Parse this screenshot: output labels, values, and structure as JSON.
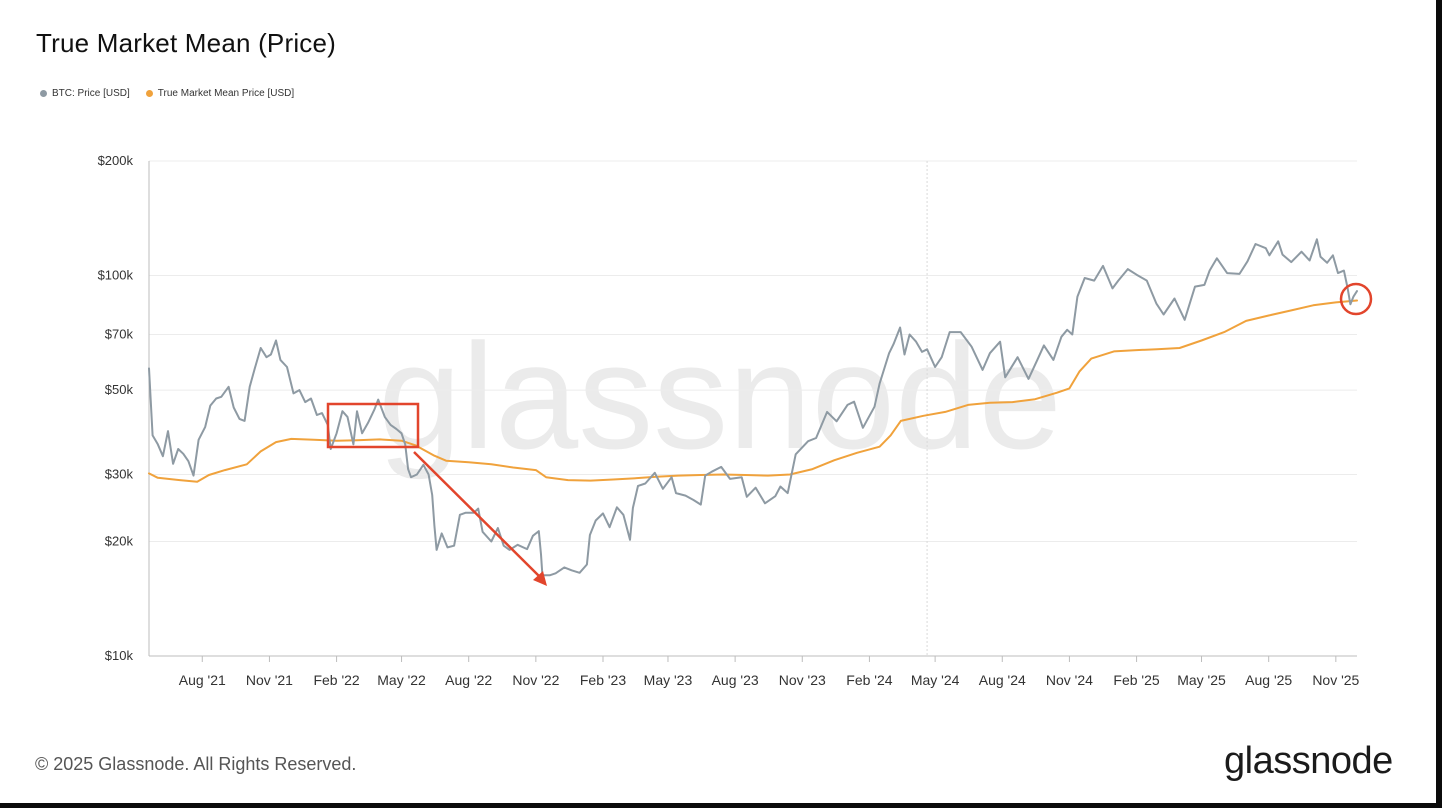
{
  "title": "True Market Mean (Price)",
  "legend": [
    {
      "label": "BTC: Price [USD]",
      "color": "#8e9aa3"
    },
    {
      "label": "True Market Mean Price [USD]",
      "color": "#f0a23c"
    }
  ],
  "watermark": "glassnode",
  "footer": "© 2025 Glassnode. All Rights Reserved.",
  "logo": "glassnode",
  "chart_data": {
    "type": "line",
    "y_scale": "log",
    "ylim": [
      10000,
      200000
    ],
    "xlim": [
      "2021-05-20",
      "2025-11-30"
    ],
    "y_ticks": [
      {
        "value": 10000,
        "label": "$10k"
      },
      {
        "value": 20000,
        "label": "$20k"
      },
      {
        "value": 30000,
        "label": "$30k"
      },
      {
        "value": 50000,
        "label": "$50k"
      },
      {
        "value": 70000,
        "label": "$70k"
      },
      {
        "value": 100000,
        "label": "$100k"
      },
      {
        "value": 200000,
        "label": "$200k"
      }
    ],
    "x_ticks": [
      {
        "date": "2021-08-01",
        "label": "Aug '21"
      },
      {
        "date": "2021-11-01",
        "label": "Nov '21"
      },
      {
        "date": "2022-02-01",
        "label": "Feb '22"
      },
      {
        "date": "2022-05-01",
        "label": "May '22"
      },
      {
        "date": "2022-08-01",
        "label": "Aug '22"
      },
      {
        "date": "2022-11-01",
        "label": "Nov '22"
      },
      {
        "date": "2023-02-01",
        "label": "Feb '23"
      },
      {
        "date": "2023-05-01",
        "label": "May '23"
      },
      {
        "date": "2023-08-01",
        "label": "Aug '23"
      },
      {
        "date": "2023-11-01",
        "label": "Nov '23"
      },
      {
        "date": "2024-02-01",
        "label": "Feb '24"
      },
      {
        "date": "2024-05-01",
        "label": "May '24"
      },
      {
        "date": "2024-08-01",
        "label": "Aug '24"
      },
      {
        "date": "2024-11-01",
        "label": "Nov '24"
      },
      {
        "date": "2025-02-01",
        "label": "Feb '25"
      },
      {
        "date": "2025-05-01",
        "label": "May '25"
      },
      {
        "date": "2025-08-01",
        "label": "Aug '25"
      },
      {
        "date": "2025-11-01",
        "label": "Nov '25"
      }
    ],
    "vertical_marker": "2024-04-20",
    "series": [
      {
        "name": "BTC: Price [USD]",
        "color": "#8e9aa3",
        "points": [
          [
            "2021-05-20",
            57000
          ],
          [
            "2021-05-25",
            38000
          ],
          [
            "2021-06-01",
            36000
          ],
          [
            "2021-06-08",
            33500
          ],
          [
            "2021-06-15",
            39000
          ],
          [
            "2021-06-22",
            32000
          ],
          [
            "2021-06-29",
            35000
          ],
          [
            "2021-07-06",
            34000
          ],
          [
            "2021-07-13",
            32500
          ],
          [
            "2021-07-20",
            29800
          ],
          [
            "2021-07-27",
            37000
          ],
          [
            "2021-08-05",
            40000
          ],
          [
            "2021-08-12",
            45500
          ],
          [
            "2021-08-20",
            47500
          ],
          [
            "2021-08-27",
            48000
          ],
          [
            "2021-09-06",
            51000
          ],
          [
            "2021-09-13",
            45000
          ],
          [
            "2021-09-21",
            42000
          ],
          [
            "2021-09-28",
            41500
          ],
          [
            "2021-10-05",
            51000
          ],
          [
            "2021-10-12",
            57000
          ],
          [
            "2021-10-20",
            64500
          ],
          [
            "2021-10-28",
            61000
          ],
          [
            "2021-11-03",
            62000
          ],
          [
            "2021-11-10",
            67500
          ],
          [
            "2021-11-16",
            60000
          ],
          [
            "2021-11-25",
            57500
          ],
          [
            "2021-12-04",
            49000
          ],
          [
            "2021-12-12",
            50000
          ],
          [
            "2021-12-20",
            46500
          ],
          [
            "2021-12-28",
            47500
          ],
          [
            "2022-01-05",
            43000
          ],
          [
            "2022-01-12",
            43500
          ],
          [
            "2022-01-20",
            40500
          ],
          [
            "2022-01-24",
            35000
          ],
          [
            "2022-02-01",
            38500
          ],
          [
            "2022-02-09",
            44000
          ],
          [
            "2022-02-16",
            42500
          ],
          [
            "2022-02-24",
            36000
          ],
          [
            "2022-03-01",
            44000
          ],
          [
            "2022-03-08",
            38500
          ],
          [
            "2022-03-16",
            41000
          ],
          [
            "2022-03-25",
            44500
          ],
          [
            "2022-03-30",
            47200
          ],
          [
            "2022-04-08",
            42500
          ],
          [
            "2022-04-16",
            40500
          ],
          [
            "2022-04-24",
            39500
          ],
          [
            "2022-05-01",
            38500
          ],
          [
            "2022-05-06",
            36000
          ],
          [
            "2022-05-10",
            31000
          ],
          [
            "2022-05-14",
            29500
          ],
          [
            "2022-05-22",
            30000
          ],
          [
            "2022-05-31",
            31800
          ],
          [
            "2022-06-07",
            30000
          ],
          [
            "2022-06-12",
            26500
          ],
          [
            "2022-06-15",
            22000
          ],
          [
            "2022-06-18",
            19000
          ],
          [
            "2022-06-25",
            21000
          ],
          [
            "2022-07-03",
            19300
          ],
          [
            "2022-07-12",
            19500
          ],
          [
            "2022-07-20",
            23500
          ],
          [
            "2022-07-28",
            23800
          ],
          [
            "2022-08-08",
            23800
          ],
          [
            "2022-08-14",
            24400
          ],
          [
            "2022-08-20",
            21200
          ],
          [
            "2022-09-01",
            20000
          ],
          [
            "2022-09-10",
            21700
          ],
          [
            "2022-09-18",
            19500
          ],
          [
            "2022-09-26",
            19000
          ],
          [
            "2022-10-07",
            19600
          ],
          [
            "2022-10-20",
            19100
          ],
          [
            "2022-10-28",
            20700
          ],
          [
            "2022-11-05",
            21300
          ],
          [
            "2022-11-08",
            18500
          ],
          [
            "2022-11-10",
            16300
          ],
          [
            "2022-11-20",
            16300
          ],
          [
            "2022-11-28",
            16500
          ],
          [
            "2022-12-10",
            17100
          ],
          [
            "2022-12-20",
            16800
          ],
          [
            "2022-12-31",
            16550
          ],
          [
            "2023-01-10",
            17400
          ],
          [
            "2023-01-14",
            20800
          ],
          [
            "2023-01-22",
            22700
          ],
          [
            "2023-02-01",
            23700
          ],
          [
            "2023-02-10",
            21800
          ],
          [
            "2023-02-20",
            24600
          ],
          [
            "2023-03-01",
            23500
          ],
          [
            "2023-03-10",
            20200
          ],
          [
            "2023-03-14",
            24500
          ],
          [
            "2023-03-21",
            28000
          ],
          [
            "2023-03-31",
            28400
          ],
          [
            "2023-04-13",
            30300
          ],
          [
            "2023-04-24",
            27500
          ],
          [
            "2023-05-06",
            29500
          ],
          [
            "2023-05-12",
            26800
          ],
          [
            "2023-05-25",
            26400
          ],
          [
            "2023-06-05",
            25700
          ],
          [
            "2023-06-15",
            25000
          ],
          [
            "2023-06-21",
            29800
          ],
          [
            "2023-06-30",
            30500
          ],
          [
            "2023-07-13",
            31400
          ],
          [
            "2023-07-25",
            29200
          ],
          [
            "2023-08-10",
            29500
          ],
          [
            "2023-08-17",
            26200
          ],
          [
            "2023-08-29",
            27700
          ],
          [
            "2023-09-11",
            25200
          ],
          [
            "2023-09-25",
            26300
          ],
          [
            "2023-10-02",
            27900
          ],
          [
            "2023-10-12",
            26800
          ],
          [
            "2023-10-23",
            33900
          ],
          [
            "2023-11-09",
            36700
          ],
          [
            "2023-11-20",
            37400
          ],
          [
            "2023-12-05",
            43800
          ],
          [
            "2023-12-18",
            41400
          ],
          [
            "2024-01-02",
            45700
          ],
          [
            "2024-01-11",
            46600
          ],
          [
            "2024-01-23",
            39800
          ],
          [
            "2024-02-08",
            45200
          ],
          [
            "2024-02-15",
            52000
          ],
          [
            "2024-02-28",
            62500
          ],
          [
            "2024-03-05",
            66000
          ],
          [
            "2024-03-14",
            73000
          ],
          [
            "2024-03-20",
            62000
          ],
          [
            "2024-03-27",
            70000
          ],
          [
            "2024-04-05",
            67000
          ],
          [
            "2024-04-13",
            63000
          ],
          [
            "2024-04-20",
            64000
          ],
          [
            "2024-05-01",
            57500
          ],
          [
            "2024-05-10",
            61000
          ],
          [
            "2024-05-21",
            71000
          ],
          [
            "2024-06-05",
            71000
          ],
          [
            "2024-06-20",
            65000
          ],
          [
            "2024-07-05",
            56500
          ],
          [
            "2024-07-15",
            62500
          ],
          [
            "2024-07-29",
            67000
          ],
          [
            "2024-08-05",
            54000
          ],
          [
            "2024-08-22",
            61000
          ],
          [
            "2024-09-06",
            53500
          ],
          [
            "2024-09-18",
            60000
          ],
          [
            "2024-09-27",
            65500
          ],
          [
            "2024-10-10",
            60000
          ],
          [
            "2024-10-21",
            69000
          ],
          [
            "2024-10-29",
            72000
          ],
          [
            "2024-11-05",
            70000
          ],
          [
            "2024-11-12",
            88000
          ],
          [
            "2024-11-22",
            98500
          ],
          [
            "2024-12-05",
            97000
          ],
          [
            "2024-12-17",
            106000
          ],
          [
            "2024-12-30",
            92500
          ],
          [
            "2025-01-07",
            97000
          ],
          [
            "2025-01-20",
            104000
          ],
          [
            "2025-02-01",
            100500
          ],
          [
            "2025-02-15",
            97000
          ],
          [
            "2025-02-28",
            84500
          ],
          [
            "2025-03-10",
            79000
          ],
          [
            "2025-03-25",
            87000
          ],
          [
            "2025-04-08",
            76500
          ],
          [
            "2025-04-22",
            93500
          ],
          [
            "2025-05-05",
            94500
          ],
          [
            "2025-05-12",
            103000
          ],
          [
            "2025-05-22",
            111000
          ],
          [
            "2025-06-05",
            101500
          ],
          [
            "2025-06-22",
            101000
          ],
          [
            "2025-07-03",
            109000
          ],
          [
            "2025-07-14",
            121000
          ],
          [
            "2025-07-28",
            118000
          ],
          [
            "2025-08-02",
            113000
          ],
          [
            "2025-08-14",
            123000
          ],
          [
            "2025-08-20",
            113500
          ],
          [
            "2025-09-01",
            108500
          ],
          [
            "2025-09-15",
            115500
          ],
          [
            "2025-09-26",
            109500
          ],
          [
            "2025-10-06",
            124500
          ],
          [
            "2025-10-11",
            112000
          ],
          [
            "2025-10-20",
            108000
          ],
          [
            "2025-10-28",
            113000
          ],
          [
            "2025-11-04",
            101500
          ],
          [
            "2025-11-12",
            103000
          ],
          [
            "2025-11-17",
            93000
          ],
          [
            "2025-11-21",
            84000
          ],
          [
            "2025-11-25",
            88000
          ],
          [
            "2025-11-30",
            91000
          ]
        ]
      },
      {
        "name": "True Market Mean Price [USD]",
        "color": "#f0a23c",
        "points": [
          [
            "2021-05-20",
            30200
          ],
          [
            "2021-06-01",
            29400
          ],
          [
            "2021-07-01",
            29000
          ],
          [
            "2021-07-25",
            28700
          ],
          [
            "2021-08-10",
            29900
          ],
          [
            "2021-09-01",
            30800
          ],
          [
            "2021-10-01",
            31900
          ],
          [
            "2021-10-20",
            34500
          ],
          [
            "2021-11-10",
            36500
          ],
          [
            "2021-12-01",
            37200
          ],
          [
            "2022-01-01",
            37000
          ],
          [
            "2022-02-01",
            36800
          ],
          [
            "2022-03-01",
            36900
          ],
          [
            "2022-04-01",
            37100
          ],
          [
            "2022-05-01",
            36800
          ],
          [
            "2022-05-20",
            35800
          ],
          [
            "2022-06-15",
            33600
          ],
          [
            "2022-07-01",
            32600
          ],
          [
            "2022-08-01",
            32300
          ],
          [
            "2022-09-01",
            31900
          ],
          [
            "2022-10-01",
            31300
          ],
          [
            "2022-11-01",
            30800
          ],
          [
            "2022-11-15",
            29500
          ],
          [
            "2022-12-15",
            29000
          ],
          [
            "2023-01-15",
            28900
          ],
          [
            "2023-02-15",
            29100
          ],
          [
            "2023-03-15",
            29300
          ],
          [
            "2023-04-15",
            29600
          ],
          [
            "2023-05-15",
            29800
          ],
          [
            "2023-06-15",
            29900
          ],
          [
            "2023-07-15",
            30000
          ],
          [
            "2023-08-15",
            29900
          ],
          [
            "2023-09-15",
            29800
          ],
          [
            "2023-10-15",
            30000
          ],
          [
            "2023-11-15",
            31000
          ],
          [
            "2023-12-15",
            32700
          ],
          [
            "2024-01-15",
            34200
          ],
          [
            "2024-02-15",
            35500
          ],
          [
            "2024-03-01",
            38000
          ],
          [
            "2024-03-15",
            41500
          ],
          [
            "2024-04-15",
            42800
          ],
          [
            "2024-05-15",
            43800
          ],
          [
            "2024-06-15",
            45700
          ],
          [
            "2024-07-15",
            46300
          ],
          [
            "2024-08-15",
            46500
          ],
          [
            "2024-09-15",
            47300
          ],
          [
            "2024-10-15",
            49200
          ],
          [
            "2024-11-01",
            50500
          ],
          [
            "2024-11-15",
            56000
          ],
          [
            "2024-12-01",
            60500
          ],
          [
            "2025-01-01",
            63200
          ],
          [
            "2025-02-01",
            63700
          ],
          [
            "2025-03-01",
            64000
          ],
          [
            "2025-04-01",
            64500
          ],
          [
            "2025-05-01",
            67500
          ],
          [
            "2025-06-01",
            71000
          ],
          [
            "2025-07-01",
            76000
          ],
          [
            "2025-08-01",
            78500
          ],
          [
            "2025-09-01",
            81000
          ],
          [
            "2025-10-01",
            83500
          ],
          [
            "2025-11-01",
            85000
          ],
          [
            "2025-11-30",
            86000
          ]
        ]
      }
    ]
  }
}
